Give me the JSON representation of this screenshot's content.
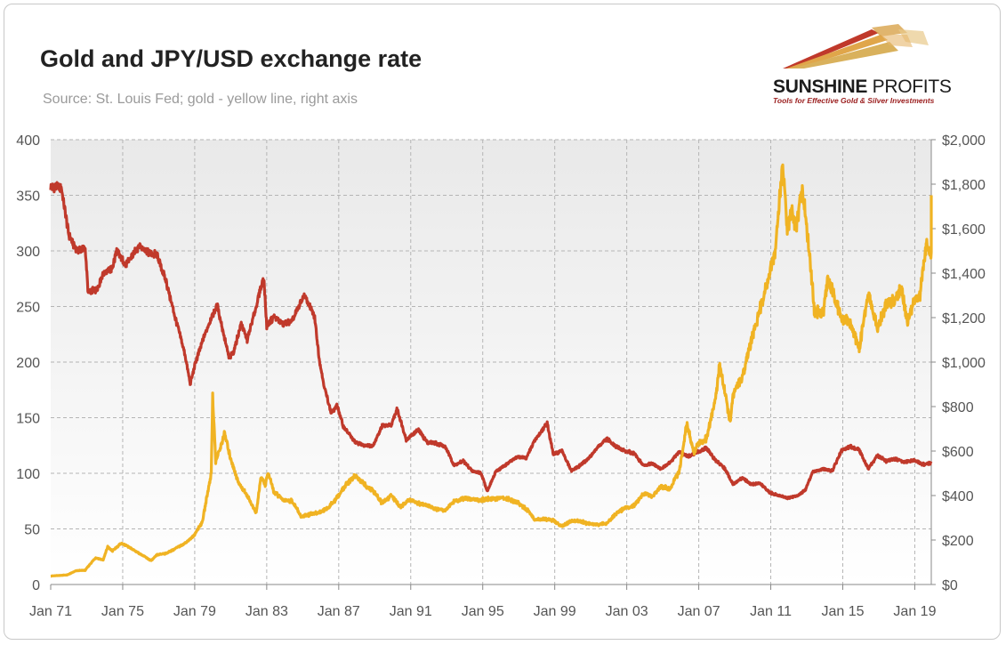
{
  "header": {
    "title": "Gold and JPY/USD exchange rate",
    "subtitle": "Source: St. Louis Fed; gold - yellow line, right axis"
  },
  "logo": {
    "name_part1": "SUNSHINE",
    "name_part2": "PROFITS",
    "tagline": "Tools for Effective Gold & Silver Investments"
  },
  "chart_data": {
    "type": "line",
    "x_range": [
      "1971-01",
      "2019-12"
    ],
    "x_ticks": [
      "Jan 71",
      "Jan 75",
      "Jan 79",
      "Jan 83",
      "Jan 87",
      "Jan 91",
      "Jan 95",
      "Jan 99",
      "Jan 03",
      "Jan 07",
      "Jan 11",
      "Jan 15",
      "Jan 19"
    ],
    "y_left": {
      "range": [
        0,
        400
      ],
      "ticks": [
        "0",
        "50",
        "100",
        "150",
        "200",
        "250",
        "300",
        "350",
        "400"
      ]
    },
    "y_right": {
      "range": [
        0,
        2000
      ],
      "ticks": [
        "$0",
        "$200",
        "$400",
        "$600",
        "$800",
        "$1,000",
        "$1,200",
        "$1,400",
        "$1,600",
        "$1,800",
        "$2,000"
      ]
    },
    "grid": true,
    "colors": {
      "jpy": "#c0392b",
      "gold": "#f0b323",
      "plot_bg_top": "#ececec",
      "plot_bg_bottom": "#ffffff"
    },
    "series": [
      {
        "axis": "left",
        "color": "#c0392b",
        "points": [
          [
            "1971-01",
            358
          ],
          [
            "1971-08",
            357
          ],
          [
            "1971-10",
            340
          ],
          [
            "1972-01",
            315
          ],
          [
            "1972-06",
            301
          ],
          [
            "1972-12",
            302
          ],
          [
            "1973-02",
            262
          ],
          [
            "1973-08",
            266
          ],
          [
            "1973-12",
            280
          ],
          [
            "1974-06",
            284
          ],
          [
            "1974-09",
            300
          ],
          [
            "1975-03",
            287
          ],
          [
            "1975-06",
            293
          ],
          [
            "1975-12",
            305
          ],
          [
            "1976-06",
            299
          ],
          [
            "1976-12",
            296
          ],
          [
            "1977-06",
            272
          ],
          [
            "1977-12",
            240
          ],
          [
            "1978-06",
            210
          ],
          [
            "1978-10",
            180
          ],
          [
            "1979-01",
            197
          ],
          [
            "1979-06",
            218
          ],
          [
            "1979-12",
            240
          ],
          [
            "1980-04",
            251
          ],
          [
            "1980-10",
            215
          ],
          [
            "1980-12",
            203
          ],
          [
            "1981-03",
            210
          ],
          [
            "1981-08",
            235
          ],
          [
            "1981-12",
            220
          ],
          [
            "1982-05",
            245
          ],
          [
            "1982-11",
            277
          ],
          [
            "1983-01",
            232
          ],
          [
            "1983-06",
            241
          ],
          [
            "1983-12",
            234
          ],
          [
            "1984-06",
            237
          ],
          [
            "1985-02",
            260
          ],
          [
            "1985-06",
            249
          ],
          [
            "1985-09",
            240
          ],
          [
            "1985-12",
            203
          ],
          [
            "1986-03",
            180
          ],
          [
            "1986-08",
            154
          ],
          [
            "1986-12",
            161
          ],
          [
            "1987-04",
            142
          ],
          [
            "1987-12",
            128
          ],
          [
            "1988-06",
            125
          ],
          [
            "1988-12",
            125
          ],
          [
            "1989-06",
            143
          ],
          [
            "1989-12",
            143
          ],
          [
            "1990-04",
            158
          ],
          [
            "1990-10",
            130
          ],
          [
            "1991-06",
            139
          ],
          [
            "1991-12",
            128
          ],
          [
            "1992-06",
            127
          ],
          [
            "1992-12",
            124
          ],
          [
            "1993-06",
            107
          ],
          [
            "1993-12",
            111
          ],
          [
            "1994-06",
            102
          ],
          [
            "1994-12",
            100
          ],
          [
            "1995-04",
            84
          ],
          [
            "1995-10",
            102
          ],
          [
            "1996-06",
            109
          ],
          [
            "1996-12",
            115
          ],
          [
            "1997-06",
            114
          ],
          [
            "1997-12",
            130
          ],
          [
            "1998-08",
            145
          ],
          [
            "1998-12",
            117
          ],
          [
            "1999-06",
            120
          ],
          [
            "1999-12",
            102
          ],
          [
            "2000-06",
            107
          ],
          [
            "2000-12",
            114
          ],
          [
            "2001-06",
            124
          ],
          [
            "2001-12",
            131
          ],
          [
            "2002-06",
            124
          ],
          [
            "2002-12",
            120
          ],
          [
            "2003-06",
            118
          ],
          [
            "2003-12",
            107
          ],
          [
            "2004-06",
            109
          ],
          [
            "2004-12",
            104
          ],
          [
            "2005-06",
            110
          ],
          [
            "2005-12",
            119
          ],
          [
            "2006-06",
            115
          ],
          [
            "2006-12",
            119
          ],
          [
            "2007-06",
            123
          ],
          [
            "2007-12",
            112
          ],
          [
            "2008-06",
            105
          ],
          [
            "2008-12",
            90
          ],
          [
            "2009-06",
            96
          ],
          [
            "2009-12",
            90
          ],
          [
            "2010-06",
            91
          ],
          [
            "2010-12",
            83
          ],
          [
            "2011-06",
            80
          ],
          [
            "2011-12",
            78
          ],
          [
            "2012-06",
            79
          ],
          [
            "2012-12",
            85
          ],
          [
            "2013-05",
            101
          ],
          [
            "2013-12",
            104
          ],
          [
            "2014-06",
            102
          ],
          [
            "2014-12",
            120
          ],
          [
            "2015-06",
            124
          ],
          [
            "2015-12",
            121
          ],
          [
            "2016-06",
            104
          ],
          [
            "2016-12",
            116
          ],
          [
            "2017-06",
            111
          ],
          [
            "2017-12",
            113
          ],
          [
            "2018-06",
            110
          ],
          [
            "2018-12",
            112
          ],
          [
            "2019-06",
            108
          ],
          [
            "2019-12",
            109
          ]
        ]
      },
      {
        "axis": "right",
        "color": "#f0b323",
        "points": [
          [
            "1971-01",
            38
          ],
          [
            "1971-12",
            43
          ],
          [
            "1972-06",
            62
          ],
          [
            "1972-12",
            64
          ],
          [
            "1973-03",
            90
          ],
          [
            "1973-07",
            120
          ],
          [
            "1973-12",
            110
          ],
          [
            "1974-03",
            170
          ],
          [
            "1974-06",
            150
          ],
          [
            "1974-12",
            186
          ],
          [
            "1975-06",
            165
          ],
          [
            "1975-12",
            140
          ],
          [
            "1976-08",
            107
          ],
          [
            "1976-12",
            134
          ],
          [
            "1977-06",
            140
          ],
          [
            "1977-12",
            161
          ],
          [
            "1978-06",
            183
          ],
          [
            "1978-12",
            216
          ],
          [
            "1979-06",
            280
          ],
          [
            "1979-12",
            500
          ],
          [
            "1980-01",
            850
          ],
          [
            "1980-03",
            550
          ],
          [
            "1980-09",
            680
          ],
          [
            "1980-12",
            590
          ],
          [
            "1981-06",
            460
          ],
          [
            "1981-12",
            400
          ],
          [
            "1982-06",
            320
          ],
          [
            "1982-09",
            480
          ],
          [
            "1982-12",
            450
          ],
          [
            "1983-02",
            500
          ],
          [
            "1983-06",
            415
          ],
          [
            "1983-12",
            380
          ],
          [
            "1984-06",
            375
          ],
          [
            "1984-12",
            305
          ],
          [
            "1985-06",
            315
          ],
          [
            "1985-12",
            325
          ],
          [
            "1986-06",
            345
          ],
          [
            "1986-12",
            390
          ],
          [
            "1987-06",
            450
          ],
          [
            "1987-12",
            490
          ],
          [
            "1988-06",
            450
          ],
          [
            "1988-12",
            420
          ],
          [
            "1989-06",
            365
          ],
          [
            "1989-12",
            400
          ],
          [
            "1990-06",
            350
          ],
          [
            "1990-12",
            380
          ],
          [
            "1991-06",
            365
          ],
          [
            "1991-12",
            355
          ],
          [
            "1992-06",
            340
          ],
          [
            "1992-12",
            335
          ],
          [
            "1993-06",
            375
          ],
          [
            "1993-12",
            385
          ],
          [
            "1994-06",
            385
          ],
          [
            "1994-12",
            380
          ],
          [
            "1995-06",
            385
          ],
          [
            "1995-12",
            387
          ],
          [
            "1996-06",
            385
          ],
          [
            "1996-12",
            370
          ],
          [
            "1997-06",
            340
          ],
          [
            "1997-12",
            290
          ],
          [
            "1998-06",
            295
          ],
          [
            "1998-12",
            288
          ],
          [
            "1999-06",
            262
          ],
          [
            "1999-12",
            285
          ],
          [
            "2000-06",
            285
          ],
          [
            "2000-12",
            272
          ],
          [
            "2001-06",
            270
          ],
          [
            "2001-12",
            276
          ],
          [
            "2002-06",
            320
          ],
          [
            "2002-12",
            345
          ],
          [
            "2003-06",
            355
          ],
          [
            "2003-12",
            410
          ],
          [
            "2004-06",
            395
          ],
          [
            "2004-12",
            440
          ],
          [
            "2005-06",
            430
          ],
          [
            "2005-12",
            510
          ],
          [
            "2006-05",
            720
          ],
          [
            "2006-10",
            590
          ],
          [
            "2006-12",
            630
          ],
          [
            "2007-06",
            655
          ],
          [
            "2007-12",
            830
          ],
          [
            "2008-03",
            990
          ],
          [
            "2008-10",
            730
          ],
          [
            "2008-12",
            860
          ],
          [
            "2009-06",
            930
          ],
          [
            "2009-12",
            1100
          ],
          [
            "2010-06",
            1240
          ],
          [
            "2010-12",
            1390
          ],
          [
            "2011-04",
            1500
          ],
          [
            "2011-09",
            1895
          ],
          [
            "2011-12",
            1600
          ],
          [
            "2012-03",
            1680
          ],
          [
            "2012-06",
            1600
          ],
          [
            "2012-10",
            1780
          ],
          [
            "2012-12",
            1670
          ],
          [
            "2013-04",
            1400
          ],
          [
            "2013-06",
            1230
          ],
          [
            "2013-12",
            1220
          ],
          [
            "2014-03",
            1370
          ],
          [
            "2014-06",
            1320
          ],
          [
            "2014-12",
            1200
          ],
          [
            "2015-06",
            1175
          ],
          [
            "2015-12",
            1060
          ],
          [
            "2016-06",
            1320
          ],
          [
            "2016-12",
            1150
          ],
          [
            "2017-06",
            1260
          ],
          [
            "2017-12",
            1280
          ],
          [
            "2018-04",
            1340
          ],
          [
            "2018-08",
            1180
          ],
          [
            "2018-12",
            1270
          ],
          [
            "2019-04",
            1280
          ],
          [
            "2019-09",
            1540
          ],
          [
            "2019-12",
            1480
          ],
          [
            "2019-12",
            1750
          ]
        ]
      }
    ]
  }
}
